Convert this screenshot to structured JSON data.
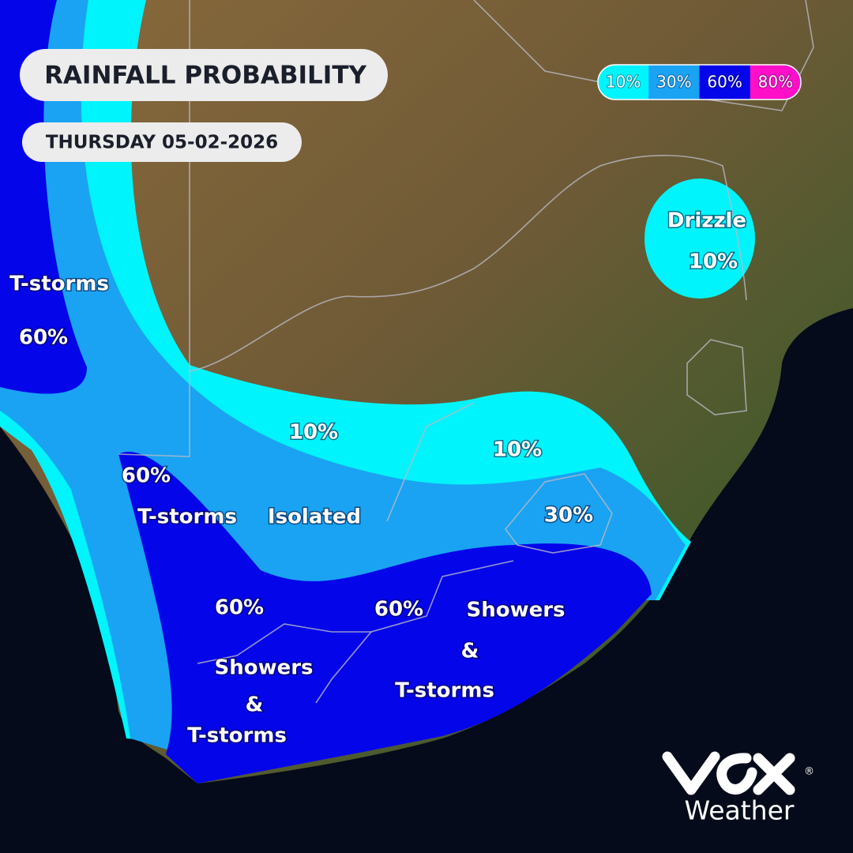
{
  "header": {
    "title": "RAINFALL PROBABILITY",
    "date": "THURSDAY 05-02-2026"
  },
  "legend": [
    {
      "label": "10%",
      "color": "#00f4fb"
    },
    {
      "label": "30%",
      "color": "#1aa3f2"
    },
    {
      "label": "60%",
      "color": "#0505ea"
    },
    {
      "label": "80%",
      "color": "#ff0fc8"
    }
  ],
  "map_labels": [
    {
      "text": "T-storms"
    },
    {
      "text": "60%"
    },
    {
      "text": "Drizzle"
    },
    {
      "text": "10%"
    },
    {
      "text": "10%"
    },
    {
      "text": "10%"
    },
    {
      "text": "60%"
    },
    {
      "text": "T-storms"
    },
    {
      "text": "Isolated"
    },
    {
      "text": "30%"
    },
    {
      "text": "60%"
    },
    {
      "text": "60%"
    },
    {
      "text": "Showers"
    },
    {
      "text": "&"
    },
    {
      "text": "T-storms"
    },
    {
      "text": "Showers"
    },
    {
      "text": "&"
    },
    {
      "text": "T-storms"
    }
  ],
  "logo": {
    "wordmark": "Weather",
    "mark": "®"
  }
}
